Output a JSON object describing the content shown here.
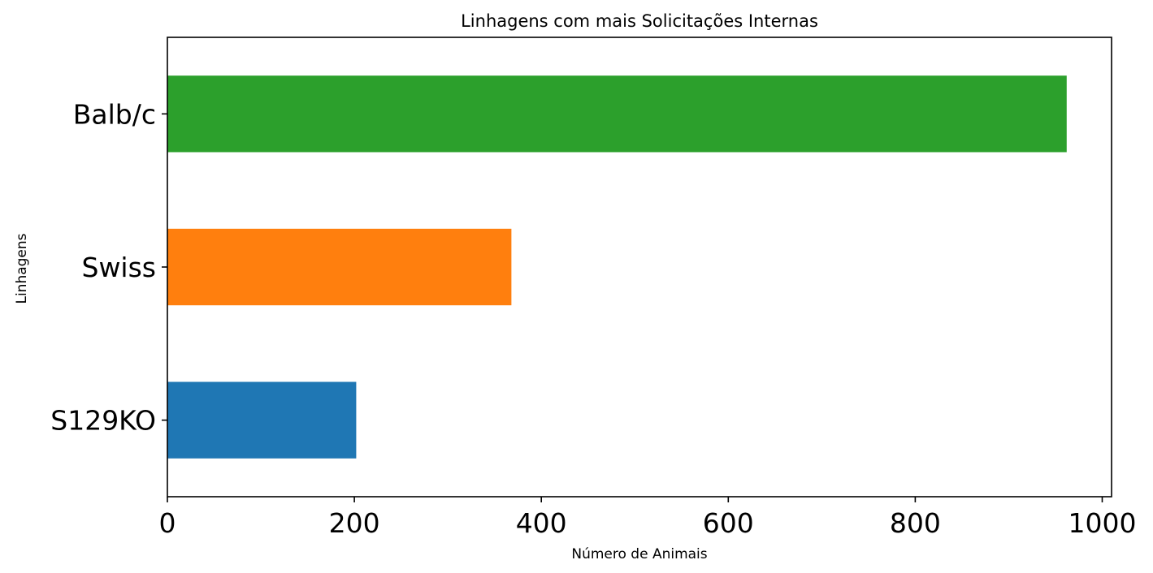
{
  "chart_data": {
    "type": "bar",
    "orientation": "horizontal",
    "title": "Linhagens com mais Solicitações Internas",
    "xlabel": "Número de Animais",
    "ylabel": "Linhagens",
    "categories": [
      "S129KO",
      "Swiss",
      "Balb/c"
    ],
    "values": [
      202,
      368,
      962
    ],
    "colors": [
      "#1f77b4",
      "#ff7f0e",
      "#2ca02c"
    ],
    "xlim": [
      0,
      1010
    ],
    "xticks": [
      0,
      200,
      400,
      600,
      800,
      1000
    ],
    "grid": false,
    "legend": "none"
  }
}
